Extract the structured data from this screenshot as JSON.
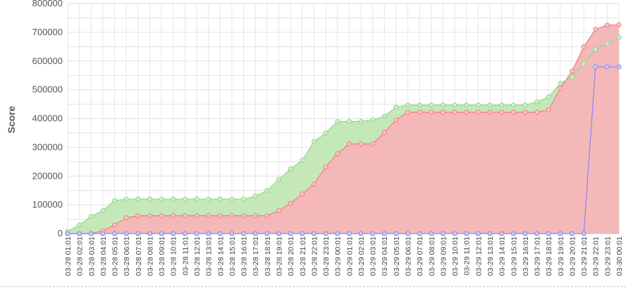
{
  "chart_data": {
    "type": "area",
    "ylabel": "Score",
    "ylim": [
      0,
      800000
    ],
    "y_ticks": [
      "0",
      "100000",
      "200000",
      "300000",
      "400000",
      "500000",
      "600000",
      "700000",
      "800000"
    ],
    "grid": true,
    "x": [
      "03-28 01:01",
      "03-28 02:01",
      "03-28 03:01",
      "03-28 04:01",
      "03-28 05:01",
      "03-28 06:01",
      "03-28 07:01",
      "03-28 08:01",
      "03-28 09:01",
      "03-28 10:01",
      "03-28 11:01",
      "03-28 12:01",
      "03-28 13:01",
      "03-28 14:01",
      "03-28 15:01",
      "03-28 16:01",
      "03-28 17:01",
      "03-28 18:01",
      "03-28 19:01",
      "03-28 20:01",
      "03-28 21:01",
      "03-28 22:01",
      "03-28 23:01",
      "03-29 00:01",
      "03-29 01:01",
      "03-29 02:01",
      "03-29 03:01",
      "03-29 04:01",
      "03-29 05:01",
      "03-29 06:01",
      "03-29 07:01",
      "03-29 08:01",
      "03-29 09:01",
      "03-29 10:01",
      "03-29 11:01",
      "03-29 12:01",
      "03-29 13:01",
      "03-29 14:01",
      "03-29 15:01",
      "03-29 16:01",
      "03-29 17:01",
      "03-29 18:01",
      "03-29 19:01",
      "03-29 20:01",
      "03-29 21:01",
      "03-29 22:01",
      "03-29 23:01",
      "03-30 00:01"
    ],
    "series": [
      {
        "color": "#8fd98f",
        "fill": "#c5e8b8",
        "values": [
          8000,
          30000,
          60000,
          80000,
          115000,
          120000,
          120000,
          120000,
          120000,
          120000,
          120000,
          120000,
          120000,
          120000,
          120000,
          120000,
          130000,
          150000,
          188000,
          225000,
          255000,
          320000,
          350000,
          390000,
          390000,
          390000,
          395000,
          408000,
          440000,
          447000,
          447000,
          447000,
          447000,
          447000,
          447000,
          447000,
          447000,
          447000,
          447000,
          447000,
          458000,
          475000,
          522000,
          545000,
          590000,
          640000,
          660000,
          682000
        ]
      },
      {
        "color": "#f08080",
        "fill": "#f4b8b8",
        "values": [
          0,
          0,
          0,
          10000,
          30000,
          55000,
          62000,
          62000,
          62000,
          62000,
          62000,
          62000,
          62000,
          62000,
          62000,
          62000,
          62000,
          62000,
          80000,
          105000,
          138000,
          172000,
          232000,
          278000,
          312000,
          312000,
          312000,
          352000,
          395000,
          422000,
          422000,
          422000,
          422000,
          422000,
          422000,
          422000,
          422000,
          422000,
          422000,
          422000,
          422000,
          430000,
          505000,
          565000,
          650000,
          710000,
          725000,
          726000
        ]
      },
      {
        "color": "#8888ee",
        "fill": "none",
        "values": [
          0,
          0,
          0,
          0,
          0,
          0,
          0,
          0,
          0,
          0,
          0,
          0,
          0,
          0,
          0,
          0,
          0,
          0,
          0,
          0,
          0,
          0,
          0,
          0,
          0,
          0,
          0,
          0,
          0,
          0,
          0,
          0,
          0,
          0,
          0,
          0,
          0,
          0,
          0,
          0,
          0,
          0,
          0,
          0,
          0,
          580000,
          580000,
          580000
        ]
      }
    ]
  }
}
